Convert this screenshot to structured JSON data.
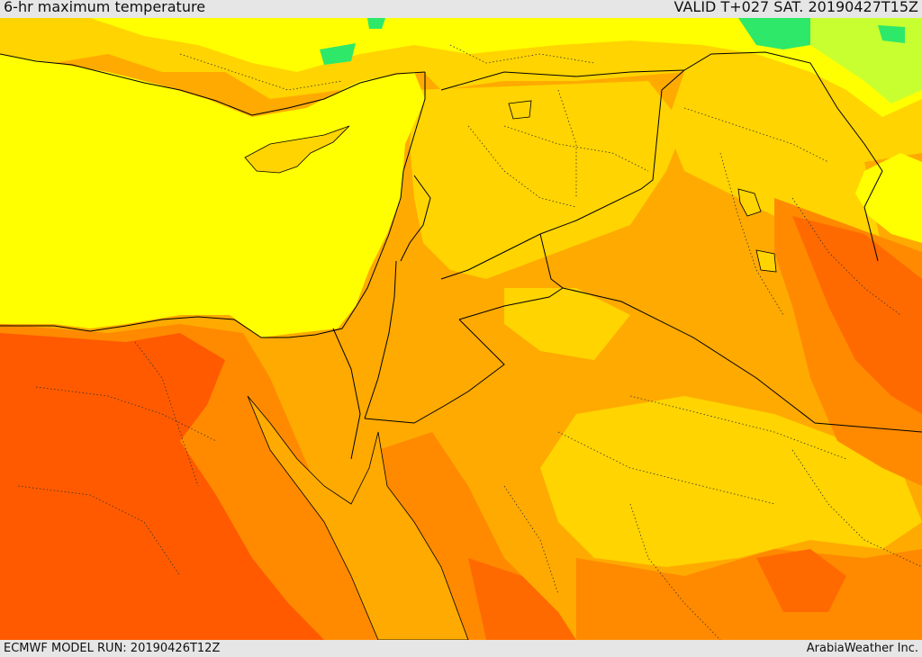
{
  "header": {
    "title": "6-hr maximum temperature",
    "valid": "VALID T+027 SAT. 20190427T15Z"
  },
  "footer": {
    "model_run": "ECMWF MODEL RUN: 20190426T12Z",
    "credit": "ArabiaWeather Inc."
  },
  "map": {
    "colors": {
      "sea": "#ffff00",
      "warm": "#ffd400",
      "hot": "#ffaa00",
      "very_hot": "#ff8a00",
      "extreme": "#ff5a00",
      "cool": "#9cff3c",
      "cold": "#2ee86a",
      "border": "#000000"
    }
  }
}
